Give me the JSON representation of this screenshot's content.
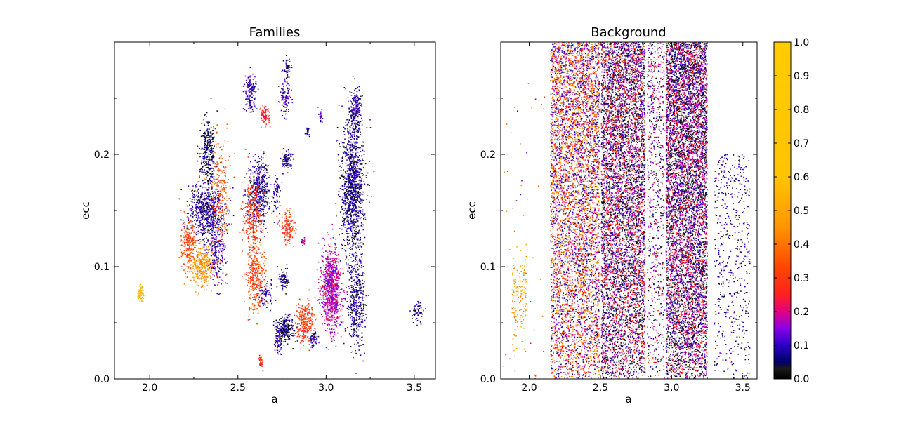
{
  "chart_data": [
    {
      "type": "scatter",
      "title": "Families",
      "xlabel": "a",
      "ylabel": "ecc",
      "xlim": [
        1.8,
        3.62
      ],
      "ylim": [
        0.0,
        0.3
      ],
      "xticks": [
        "2.0",
        "2.5",
        "3.0",
        "3.5"
      ],
      "yticks": [
        "0.0",
        "0.1",
        "0.2"
      ],
      "colormap": "gnuplot2",
      "clusters": [
        {
          "a": 1.95,
          "ecc": 0.077,
          "sa": 0.012,
          "se": 0.006,
          "n": 60,
          "c": 0.55
        },
        {
          "a": 2.32,
          "ecc": 0.15,
          "sa": 0.07,
          "se": 0.018,
          "n": 700,
          "c": 0.08
        },
        {
          "a": 2.33,
          "ecc": 0.205,
          "sa": 0.03,
          "se": 0.02,
          "n": 300,
          "c": 0.05
        },
        {
          "a": 2.3,
          "ecc": 0.1,
          "sa": 0.05,
          "se": 0.012,
          "n": 350,
          "c": 0.45
        },
        {
          "a": 2.22,
          "ecc": 0.12,
          "sa": 0.03,
          "se": 0.015,
          "n": 220,
          "c": 0.32
        },
        {
          "a": 2.4,
          "ecc": 0.165,
          "sa": 0.04,
          "se": 0.04,
          "n": 260,
          "c": 0.35
        },
        {
          "a": 2.38,
          "ecc": 0.11,
          "sa": 0.04,
          "se": 0.02,
          "n": 200,
          "c": 0.1
        },
        {
          "a": 2.62,
          "ecc": 0.165,
          "sa": 0.04,
          "se": 0.022,
          "n": 450,
          "c": 0.08
        },
        {
          "a": 2.58,
          "ecc": 0.145,
          "sa": 0.035,
          "se": 0.025,
          "n": 300,
          "c": 0.3
        },
        {
          "a": 2.6,
          "ecc": 0.09,
          "sa": 0.035,
          "se": 0.02,
          "n": 320,
          "c": 0.33
        },
        {
          "a": 2.57,
          "ecc": 0.255,
          "sa": 0.025,
          "se": 0.012,
          "n": 150,
          "c": 0.1
        },
        {
          "a": 2.65,
          "ecc": 0.235,
          "sa": 0.02,
          "se": 0.006,
          "n": 90,
          "c": 0.25
        },
        {
          "a": 2.78,
          "ecc": 0.275,
          "sa": 0.015,
          "se": 0.008,
          "n": 60,
          "c": 0.08
        },
        {
          "a": 2.77,
          "ecc": 0.25,
          "sa": 0.02,
          "se": 0.012,
          "n": 90,
          "c": 0.1
        },
        {
          "a": 2.78,
          "ecc": 0.195,
          "sa": 0.02,
          "se": 0.006,
          "n": 100,
          "c": 0.07
        },
        {
          "a": 2.78,
          "ecc": 0.135,
          "sa": 0.03,
          "se": 0.01,
          "n": 150,
          "c": 0.3
        },
        {
          "a": 2.76,
          "ecc": 0.09,
          "sa": 0.02,
          "se": 0.007,
          "n": 80,
          "c": 0.07
        },
        {
          "a": 2.77,
          "ecc": 0.045,
          "sa": 0.04,
          "se": 0.008,
          "n": 230,
          "c": 0.05
        },
        {
          "a": 2.73,
          "ecc": 0.032,
          "sa": 0.015,
          "se": 0.008,
          "n": 70,
          "c": 0.08
        },
        {
          "a": 2.72,
          "ecc": 0.165,
          "sa": 0.015,
          "se": 0.012,
          "n": 60,
          "c": 0.08
        },
        {
          "a": 2.66,
          "ecc": 0.075,
          "sa": 0.03,
          "se": 0.01,
          "n": 70,
          "c": 0.08
        },
        {
          "a": 2.63,
          "ecc": 0.015,
          "sa": 0.01,
          "se": 0.004,
          "n": 35,
          "c": 0.28
        },
        {
          "a": 2.88,
          "ecc": 0.05,
          "sa": 0.035,
          "se": 0.012,
          "n": 280,
          "c": 0.3
        },
        {
          "a": 2.87,
          "ecc": 0.122,
          "sa": 0.008,
          "se": 0.003,
          "n": 25,
          "c": 0.18
        },
        {
          "a": 2.93,
          "ecc": 0.035,
          "sa": 0.015,
          "se": 0.005,
          "n": 70,
          "c": 0.08
        },
        {
          "a": 3.03,
          "ecc": 0.08,
          "sa": 0.04,
          "se": 0.025,
          "n": 900,
          "c": 0.18
        },
        {
          "a": 3.15,
          "ecc": 0.17,
          "sa": 0.045,
          "se": 0.045,
          "n": 1200,
          "c": 0.07
        },
        {
          "a": 3.17,
          "ecc": 0.24,
          "sa": 0.02,
          "se": 0.015,
          "n": 200,
          "c": 0.08
        },
        {
          "a": 3.17,
          "ecc": 0.07,
          "sa": 0.035,
          "se": 0.03,
          "n": 400,
          "c": 0.07
        },
        {
          "a": 3.52,
          "ecc": 0.06,
          "sa": 0.025,
          "se": 0.006,
          "n": 60,
          "c": 0.07
        },
        {
          "a": 2.97,
          "ecc": 0.235,
          "sa": 0.008,
          "se": 0.005,
          "n": 20,
          "c": 0.1
        },
        {
          "a": 2.9,
          "ecc": 0.22,
          "sa": 0.012,
          "se": 0.003,
          "n": 20,
          "c": 0.1
        }
      ]
    },
    {
      "type": "scatter",
      "title": "Background",
      "xlabel": "a",
      "ylabel": "ecc",
      "xlim": [
        1.8,
        3.6
      ],
      "ylim": [
        0.0,
        0.3
      ],
      "xticks": [
        "2.0",
        "2.5",
        "3.0",
        "3.5"
      ],
      "yticks": [
        "0.0",
        "0.1",
        "0.2"
      ],
      "colormap": "gnuplot2",
      "bands": [
        {
          "a0": 1.88,
          "a1": 1.98,
          "n": 150,
          "emax": 0.12,
          "cmin": 0.4,
          "cmax": 0.6
        },
        {
          "a0": 2.15,
          "a1": 2.5,
          "n": 5500,
          "emax": 0.3,
          "cmin": 0.05,
          "cmax": 0.55
        },
        {
          "a0": 2.5,
          "a1": 2.82,
          "n": 6500,
          "emax": 0.3,
          "cmin": 0.0,
          "cmax": 0.35
        },
        {
          "a0": 2.83,
          "a1": 2.95,
          "n": 700,
          "emax": 0.3,
          "cmin": 0.0,
          "cmax": 0.3
        },
        {
          "a0": 2.96,
          "a1": 3.25,
          "n": 7000,
          "emax": 0.3,
          "cmin": 0.0,
          "cmax": 0.3
        },
        {
          "a0": 3.3,
          "a1": 3.55,
          "n": 500,
          "emax": 0.2,
          "cmin": 0.03,
          "cmax": 0.15
        }
      ],
      "gaps": [
        2.5,
        2.82,
        2.955,
        3.27
      ],
      "colorbar": {
        "ticks": [
          "0.0",
          "0.1",
          "0.2",
          "0.3",
          "0.4",
          "0.5",
          "0.6",
          "0.7",
          "0.8",
          "0.9",
          "1.0"
        ]
      }
    }
  ]
}
